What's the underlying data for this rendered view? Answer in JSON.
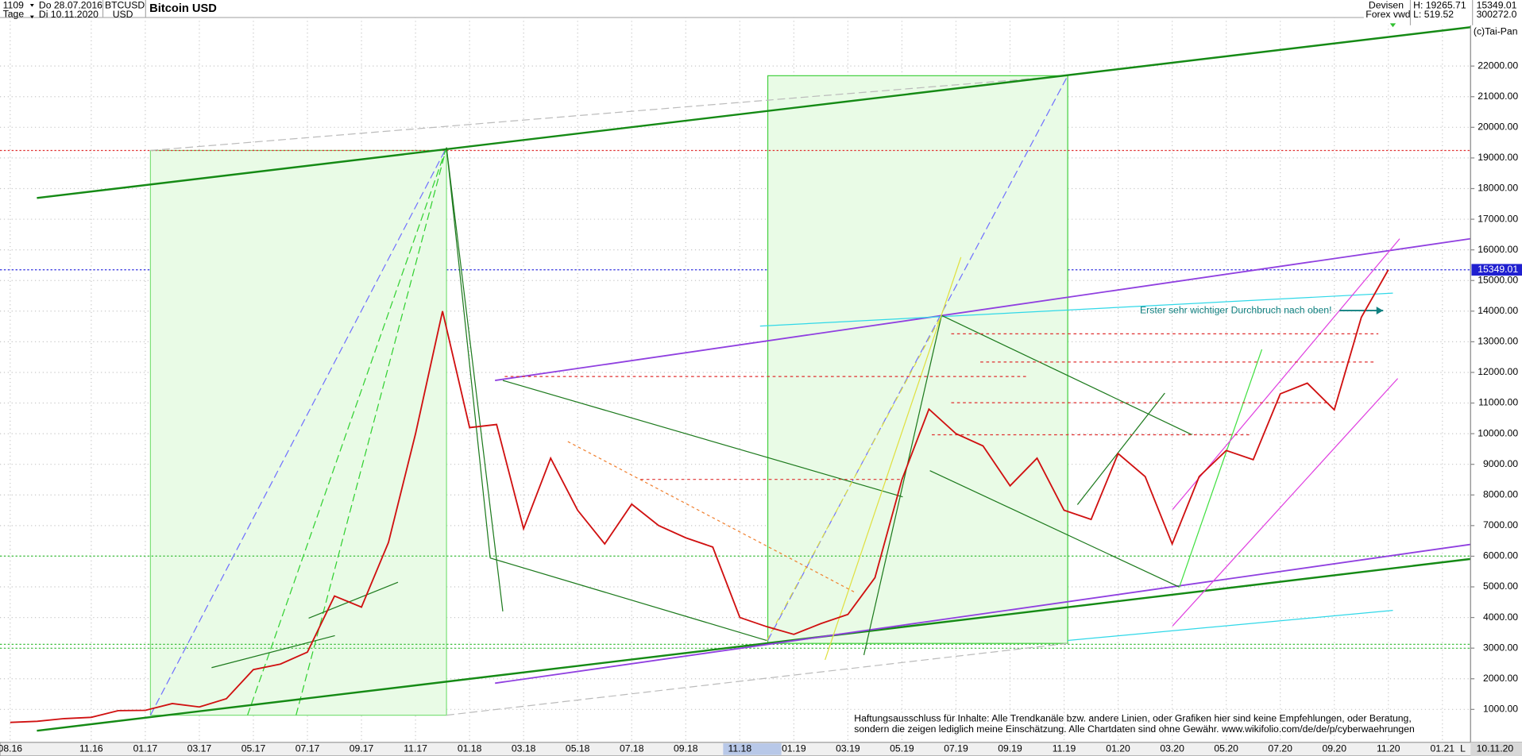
{
  "header": {
    "count": "1109",
    "start_date": "Do 28.07.2016",
    "period": "Tage",
    "end_date": "Di 10.11.2020",
    "symbol": "BTCUSD",
    "currency": "USD",
    "title": "Bitcoin USD",
    "market": "Devisen",
    "source": "Forex vwd",
    "high": "H: 19265.71",
    "low": "L: 519.52",
    "volume": "300272.0",
    "copyright": "(c)Tai-Pan"
  },
  "chart_data": {
    "type": "line",
    "categories": [
      "08.16",
      null,
      null,
      "11.16",
      null,
      "01.17",
      null,
      "03.17",
      null,
      "05.17",
      null,
      "07.17",
      null,
      "09.17",
      null,
      "11.17",
      null,
      "01.18",
      null,
      "03.18",
      null,
      "05.18",
      null,
      "07.18",
      null,
      "09.18",
      null,
      "11.18",
      null,
      "01.19",
      null,
      "03.19",
      null,
      "05.19",
      null,
      "07.19",
      null,
      "09.19",
      null,
      "11.19",
      null,
      "01.20",
      null,
      "03.20",
      null,
      "05.20",
      null,
      "07.20",
      null,
      "09.20",
      null,
      "11.20",
      null,
      "01.21"
    ],
    "series": [
      {
        "name": "BTCUSD",
        "color": "#d01010",
        "values": [
          575,
          610,
          700,
          740,
          960,
          970,
          1190,
          1080,
          1350,
          2300,
          2480,
          2870,
          4700,
          4340,
          6450,
          10000,
          14000,
          10200,
          10300,
          6900,
          9200,
          7500,
          6400,
          7700,
          7000,
          6600,
          6300,
          4000,
          3700,
          3450,
          3800,
          4100,
          5300,
          8500,
          10800,
          10000,
          9600,
          8300,
          9200,
          7500,
          7200,
          9350,
          8600,
          6400,
          8600,
          9450,
          9150,
          11300,
          11650,
          10780,
          13800,
          15349,
          null,
          null
        ]
      }
    ],
    "last_price": 15349.01,
    "ylim": [
      0,
      23600
    ],
    "yticks": [
      {
        "value": 1000,
        "label": "1000.00"
      },
      {
        "value": 2000,
        "label": "2000.00"
      },
      {
        "value": 3000,
        "label": "3000.00"
      },
      {
        "value": 4000,
        "label": "4000.00"
      },
      {
        "value": 5000,
        "label": "5000.00"
      },
      {
        "value": 6000,
        "label": "6000.00"
      },
      {
        "value": 7000,
        "label": "7000.00"
      },
      {
        "value": 8000,
        "label": "8000.00"
      },
      {
        "value": 9000,
        "label": "9000.00"
      },
      {
        "value": 10000,
        "label": "10000.00"
      },
      {
        "value": 11000,
        "label": "11000.00"
      },
      {
        "value": 12000,
        "label": "12000.00"
      },
      {
        "value": 13000,
        "label": "13000.00"
      },
      {
        "value": 14000,
        "label": "14000.00"
      },
      {
        "value": 15000,
        "label": "15000.00"
      },
      {
        "value": 16000,
        "label": "16000.00"
      },
      {
        "value": 17000,
        "label": "17000.00"
      },
      {
        "value": 18000,
        "label": "18000.00"
      },
      {
        "value": 19000,
        "label": "19000.00"
      },
      {
        "value": 20000,
        "label": "20000.00"
      },
      {
        "value": 21000,
        "label": "21000.00"
      },
      {
        "value": 22000,
        "label": "22000.00"
      }
    ],
    "grid": true,
    "x_end_label": "10.11.20",
    "scale_mode": "L",
    "annotation": "Erster sehr wichtiger Durchbruch nach oben!",
    "disclaimer": [
      "Haftungsausschluss für Inhalte: Alle Trendkanäle bzw. andere Linien, oder Grafiken hier sind keine Empfehlungen, oder Beratung,",
      "sondern die zeigen lediglich meine  Einschätzung. Alle Chartdaten sind ohne Gewähr.  www.wikifolio.com/de/de/p/cyberwaehrungen"
    ]
  }
}
